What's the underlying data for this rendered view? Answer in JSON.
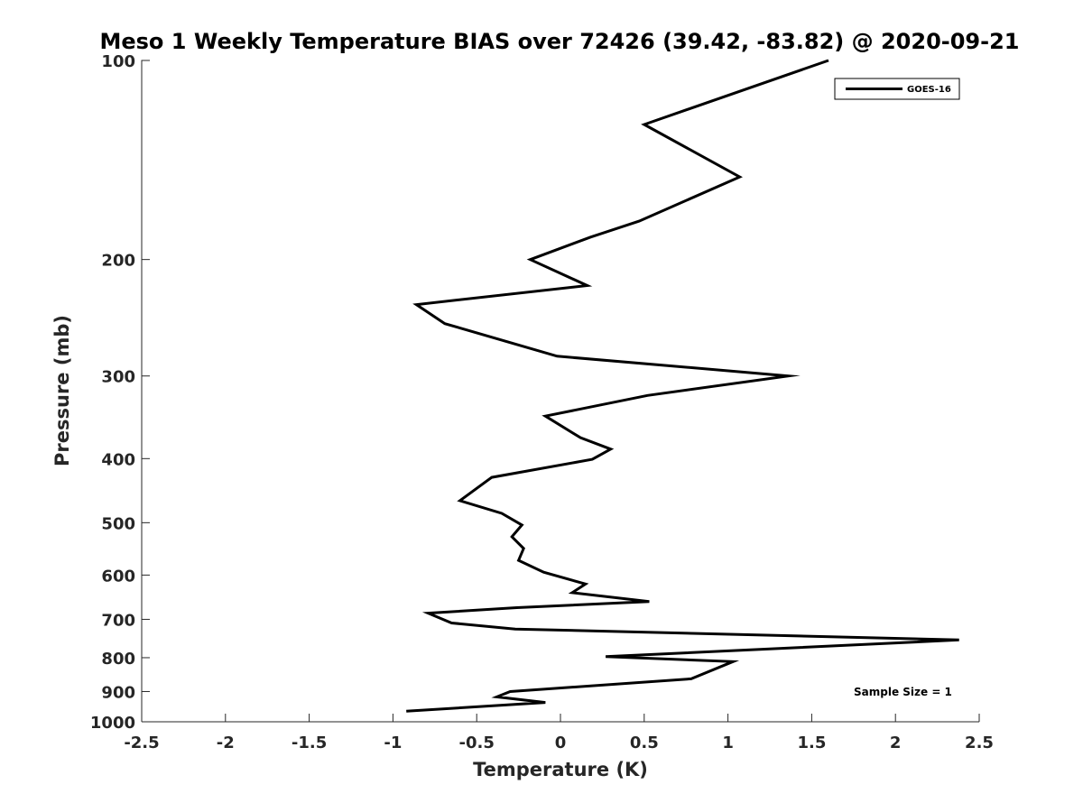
{
  "chart_data": {
    "type": "line",
    "title": "Meso 1 Weekly Temperature BIAS over 72426 (39.42, -83.82) @ 2020-09-21",
    "xlabel": "Temperature (K)",
    "ylabel": "Pressure (mb)",
    "xlim": [
      -2.5,
      2.5
    ],
    "ylim": [
      100,
      1000
    ],
    "y_scale": "log",
    "y_reversed": true,
    "x_ticks": [
      "-2.5",
      "-2",
      "-1.5",
      "-1",
      "-0.5",
      "0",
      "0.5",
      "1",
      "1.5",
      "2",
      "2.5"
    ],
    "y_ticks": [
      "100",
      "200",
      "300",
      "400",
      "500",
      "600",
      "700",
      "800",
      "900",
      "1000"
    ],
    "grid": false,
    "legend_position": "top-right",
    "series": [
      {
        "name": "GOES-16",
        "color": "#000000",
        "points": [
          [
            1.6,
            100
          ],
          [
            0.5,
            125
          ],
          [
            1.07,
            150
          ],
          [
            0.47,
            175
          ],
          [
            0.18,
            185
          ],
          [
            -0.18,
            200
          ],
          [
            0.16,
            219
          ],
          [
            -0.86,
            234
          ],
          [
            -0.69,
            250
          ],
          [
            -0.02,
            280
          ],
          [
            1.36,
            300
          ],
          [
            0.52,
            321
          ],
          [
            -0.09,
            345
          ],
          [
            0.12,
            372
          ],
          [
            0.3,
            387
          ],
          [
            0.19,
            401
          ],
          [
            -0.41,
            427
          ],
          [
            -0.6,
            463
          ],
          [
            -0.35,
            484
          ],
          [
            -0.23,
            504
          ],
          [
            -0.29,
            525
          ],
          [
            -0.22,
            547
          ],
          [
            -0.25,
            570
          ],
          [
            -0.1,
            594
          ],
          [
            0.15,
            619
          ],
          [
            0.07,
            638
          ],
          [
            0.53,
            658
          ],
          [
            -0.26,
            672
          ],
          [
            -0.79,
            685
          ],
          [
            -0.65,
            709
          ],
          [
            -0.27,
            724
          ],
          [
            2.38,
            752
          ],
          [
            0.27,
            797
          ],
          [
            1.03,
            811
          ],
          [
            0.78,
            861
          ],
          [
            -0.3,
            900
          ],
          [
            -0.38,
            917
          ],
          [
            -0.09,
            935
          ],
          [
            -0.92,
            964
          ]
        ]
      }
    ],
    "legend_entries": [
      "GOES-16"
    ],
    "annotations": [
      "Sample Size = 1"
    ]
  }
}
